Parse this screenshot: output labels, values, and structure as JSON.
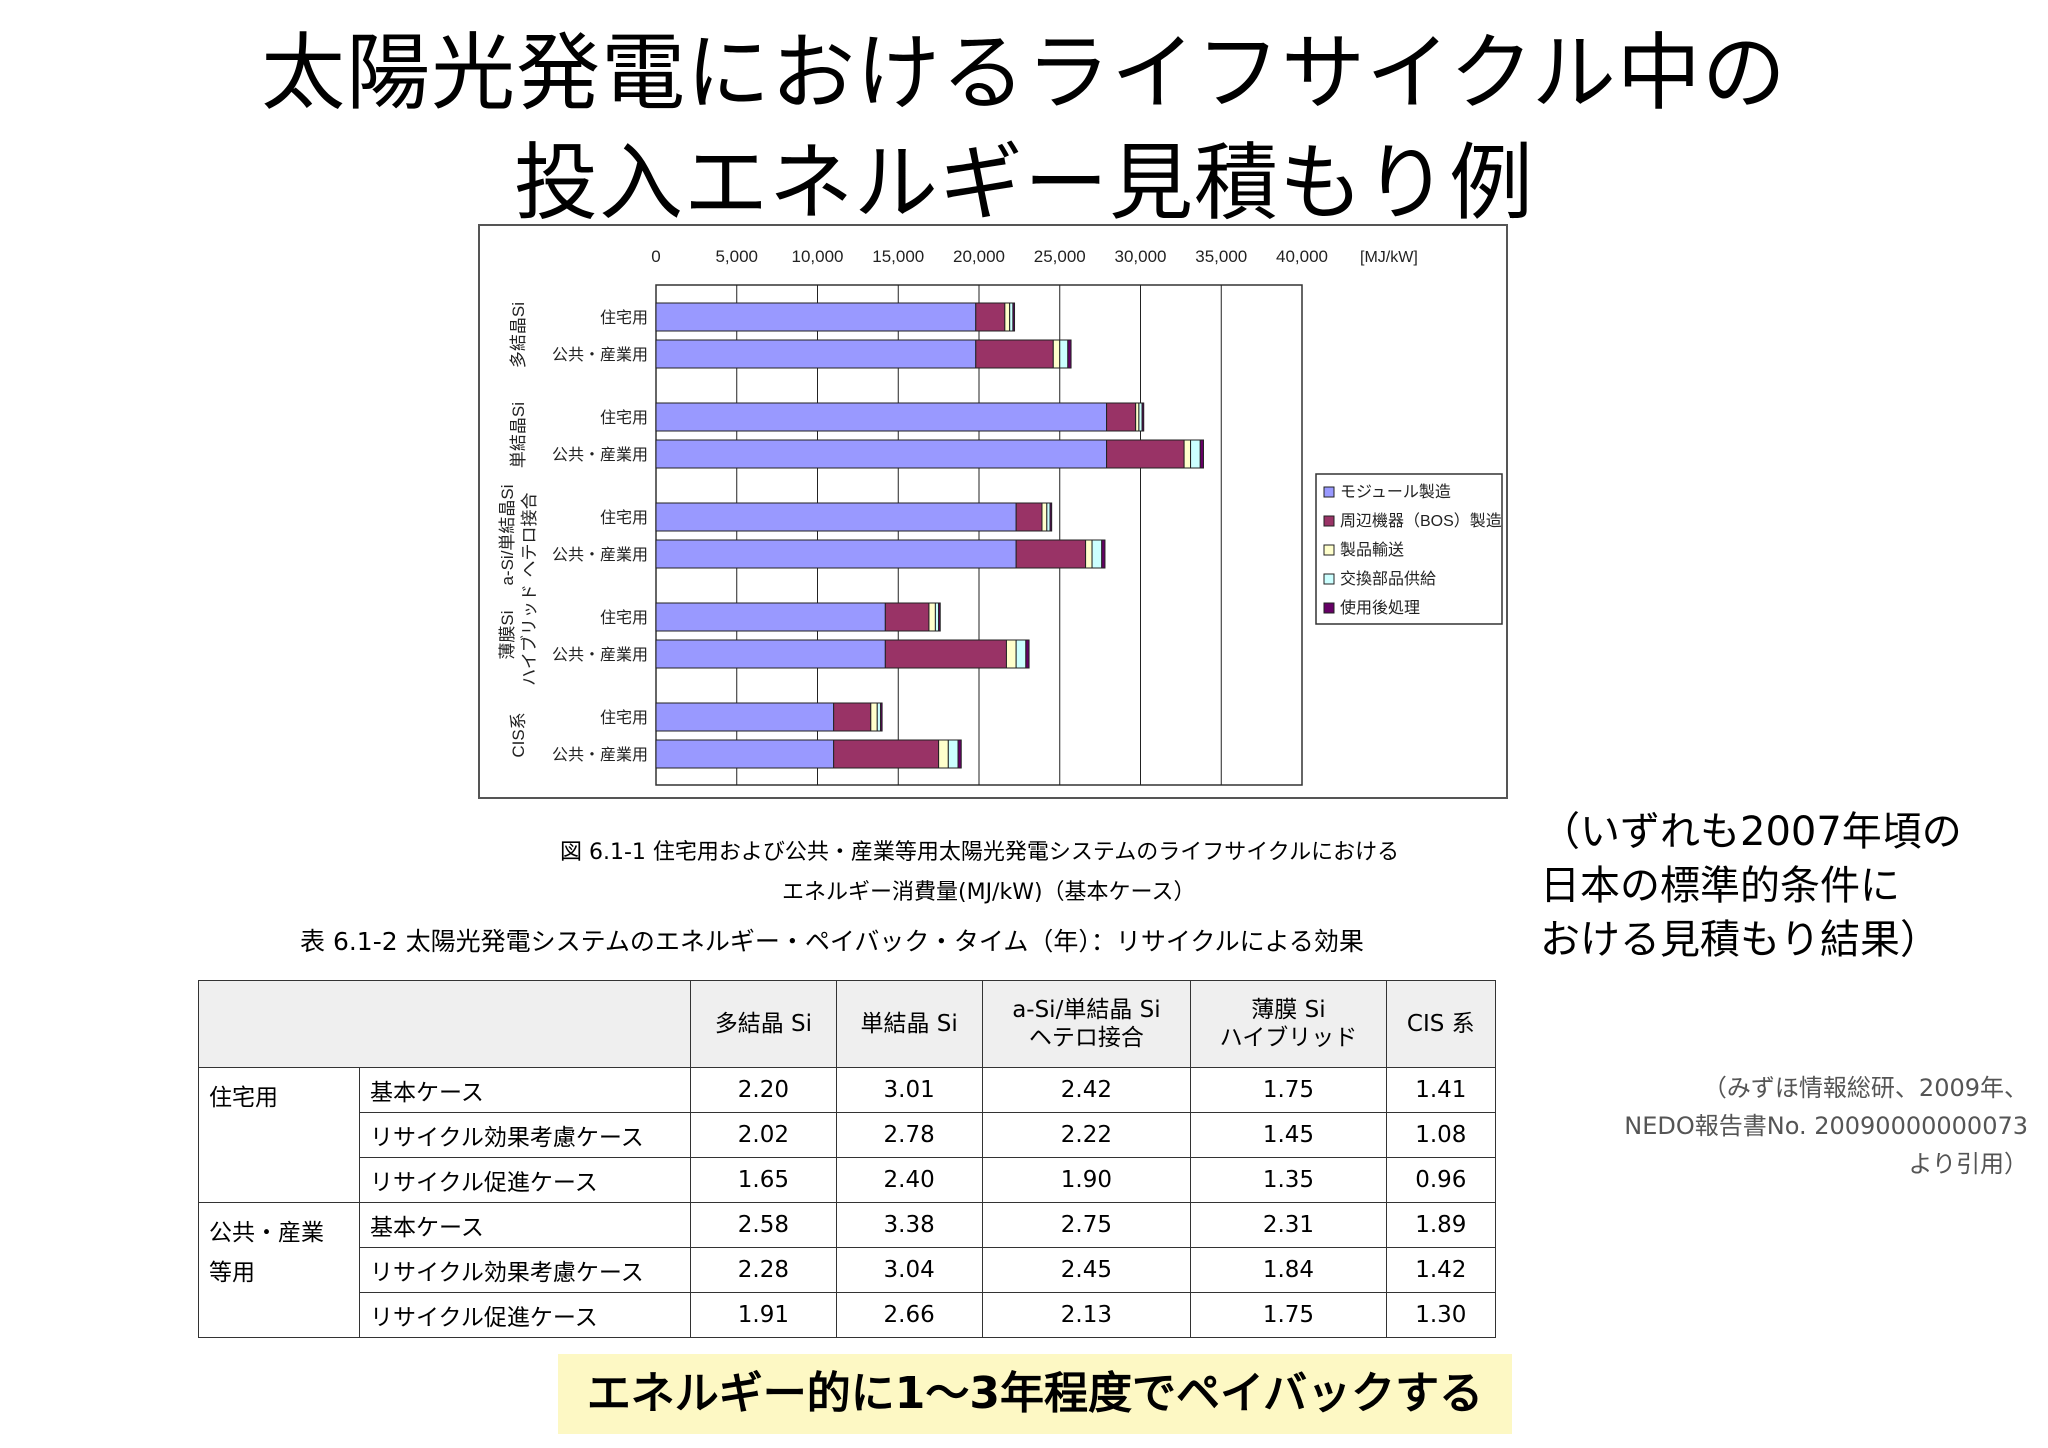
{
  "slide": {
    "title_line1": "太陽光発電におけるライフサイクル中の",
    "title_line2": "投入エネルギー見積もり例",
    "note_lines": [
      "（いずれも2007年頃の",
      "日本の標準的条件に",
      "おける見積もり結果）"
    ],
    "source_lines": [
      "（みずほ情報総研、2009年、",
      "NEDO報告書No. 20090000000073",
      "より引用）"
    ],
    "figure_caption_line1": "図 6.1-1  住宅用および公共・産業等用太陽光発電システムのライフサイクルにおける",
    "figure_caption_line2": "エネルギー消費量(MJ/kW)（基本ケース）",
    "table_caption": "表 6.1-2  太陽光発電システムのエネルギー・ペイバック・タイム（年）：リサイクルによる効果",
    "conclusion": "エネルギー的に1～3年程度でペイバックする"
  },
  "chart_data": {
    "type": "bar",
    "orientation": "horizontal",
    "stacked": true,
    "unit_label": "[MJ/kW]",
    "xlim": [
      0,
      40000
    ],
    "ticks": [
      "0",
      "5,000",
      "10,000",
      "15,000",
      "20,000",
      "25,000",
      "30,000",
      "35,000",
      "40,000"
    ],
    "groups": [
      {
        "label": "多結晶Si",
        "categories": [
          "住宅用",
          "公共・産業用"
        ]
      },
      {
        "label": "単結晶Si",
        "categories": [
          "住宅用",
          "公共・産業用"
        ]
      },
      {
        "label": "a-Si/単結晶Si\nヘテロ接合",
        "categories": [
          "住宅用",
          "公共・産業用"
        ]
      },
      {
        "label": "薄膜Si\nハイブリッド",
        "categories": [
          "住宅用",
          "公共・産業用"
        ]
      },
      {
        "label": "CIS系",
        "categories": [
          "住宅用",
          "公共・産業用"
        ]
      }
    ],
    "series": [
      {
        "name": "モジュール製造",
        "color": "#9999ff",
        "values": [
          19800,
          19800,
          27900,
          27900,
          22300,
          22300,
          14200,
          14200,
          11000,
          11000
        ]
      },
      {
        "name": "周辺機器（BOS）製造",
        "color": "#993366",
        "values": [
          1800,
          4800,
          1800,
          4800,
          1600,
          4300,
          2700,
          7500,
          2300,
          6500
        ]
      },
      {
        "name": "製品輸送",
        "color": "#ffffcc",
        "values": [
          300,
          400,
          200,
          400,
          300,
          400,
          400,
          600,
          400,
          600
        ]
      },
      {
        "name": "交換部品供給",
        "color": "#ccffff",
        "values": [
          200,
          500,
          200,
          600,
          200,
          600,
          200,
          600,
          200,
          600
        ]
      },
      {
        "name": "使用後処理",
        "color": "#660066",
        "values": [
          100,
          200,
          100,
          200,
          100,
          200,
          100,
          200,
          100,
          200
        ]
      }
    ],
    "legend_position": "right",
    "grid": true
  },
  "table": {
    "headers": [
      "",
      "多結晶 Si",
      "単結晶 Si",
      "a-Si/単結晶 Si\nヘテロ接合",
      "薄膜 Si\nハイブリッド",
      "CIS 系"
    ],
    "groups": [
      {
        "label": "住宅用",
        "rows": [
          {
            "case": "基本ケース",
            "values": [
              "2.20",
              "3.01",
              "2.42",
              "1.75",
              "1.41"
            ]
          },
          {
            "case": "リサイクル効果考慮ケース",
            "values": [
              "2.02",
              "2.78",
              "2.22",
              "1.45",
              "1.08"
            ]
          },
          {
            "case": "リサイクル促進ケース",
            "values": [
              "1.65",
              "2.40",
              "1.90",
              "1.35",
              "0.96"
            ]
          }
        ]
      },
      {
        "label": "公共・産業\n等用",
        "rows": [
          {
            "case": "基本ケース",
            "values": [
              "2.58",
              "3.38",
              "2.75",
              "2.31",
              "1.89"
            ]
          },
          {
            "case": "リサイクル効果考慮ケース",
            "values": [
              "2.28",
              "3.04",
              "2.45",
              "1.84",
              "1.42"
            ]
          },
          {
            "case": "リサイクル促進ケース",
            "values": [
              "1.91",
              "2.66",
              "2.13",
              "1.75",
              "1.30"
            ]
          }
        ]
      }
    ]
  }
}
